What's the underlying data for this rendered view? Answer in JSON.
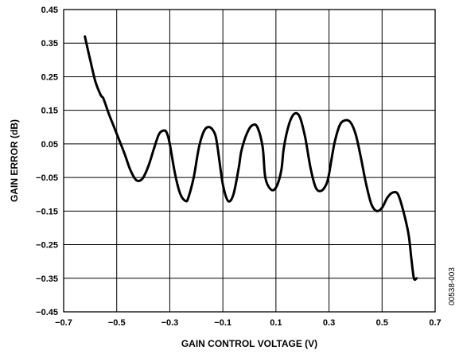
{
  "chart_data": {
    "type": "line",
    "title": "",
    "xlabel": "GAIN CONTROL VOLTAGE (V)",
    "ylabel": "GAIN ERROR (dB)",
    "xlim": [
      -0.7,
      0.7
    ],
    "ylim": [
      -0.45,
      0.45
    ],
    "xticks": [
      -0.7,
      -0.5,
      -0.3,
      -0.1,
      0.1,
      0.3,
      0.5,
      0.7
    ],
    "yticks": [
      0.45,
      0.35,
      0.25,
      0.15,
      0.05,
      -0.05,
      -0.15,
      -0.25,
      -0.35,
      -0.45
    ],
    "xtick_labels": [
      "−0.7",
      "−0.5",
      "−0.3",
      "−0.1",
      "0.1",
      "0.3",
      "0.5",
      "0.7"
    ],
    "ytick_labels": [
      "0.45",
      "0.35",
      "0.25",
      "0.15",
      "0.05",
      "−0.05",
      "−0.15",
      "−0.25",
      "−0.35",
      "−0.45"
    ],
    "grid": true,
    "annotation": "00538-003",
    "series": [
      {
        "x": [
          -0.62,
          -0.6,
          -0.58,
          -0.56,
          -0.55,
          -0.53,
          -0.51,
          -0.49,
          -0.47,
          -0.45,
          -0.43,
          -0.415,
          -0.4,
          -0.38,
          -0.36,
          -0.34,
          -0.32,
          -0.31,
          -0.3,
          -0.28,
          -0.26,
          -0.24,
          -0.23,
          -0.21,
          -0.19,
          -0.17,
          -0.15,
          -0.13,
          -0.12,
          -0.1,
          -0.08,
          -0.06,
          -0.04,
          -0.03,
          -0.01,
          0.01,
          0.03,
          0.05,
          0.06,
          0.08,
          0.1,
          0.12,
          0.13,
          0.15,
          0.17,
          0.19,
          0.21,
          0.23,
          0.25,
          0.27,
          0.29,
          0.3,
          0.32,
          0.34,
          0.36,
          0.38,
          0.4,
          0.42,
          0.44,
          0.46,
          0.48,
          0.5,
          0.52,
          0.54,
          0.56,
          0.58,
          0.6,
          0.61,
          0.62,
          0.63
        ],
        "y": [
          0.37,
          0.3,
          0.235,
          0.195,
          0.185,
          0.14,
          0.1,
          0.06,
          0.02,
          -0.025,
          -0.055,
          -0.06,
          -0.05,
          -0.015,
          0.035,
          0.08,
          0.09,
          0.08,
          0.05,
          -0.04,
          -0.1,
          -0.12,
          -0.11,
          -0.05,
          0.04,
          0.09,
          0.1,
          0.08,
          0.04,
          -0.07,
          -0.12,
          -0.1,
          -0.02,
          0.03,
          0.08,
          0.105,
          0.1,
          0.04,
          -0.05,
          -0.085,
          -0.08,
          -0.03,
          0.04,
          0.11,
          0.14,
          0.13,
          0.07,
          -0.02,
          -0.08,
          -0.09,
          -0.07,
          -0.04,
          0.05,
          0.105,
          0.12,
          0.115,
          0.08,
          0.01,
          -0.07,
          -0.13,
          -0.15,
          -0.14,
          -0.11,
          -0.095,
          -0.1,
          -0.15,
          -0.22,
          -0.29,
          -0.35,
          -0.35
        ]
      }
    ]
  }
}
